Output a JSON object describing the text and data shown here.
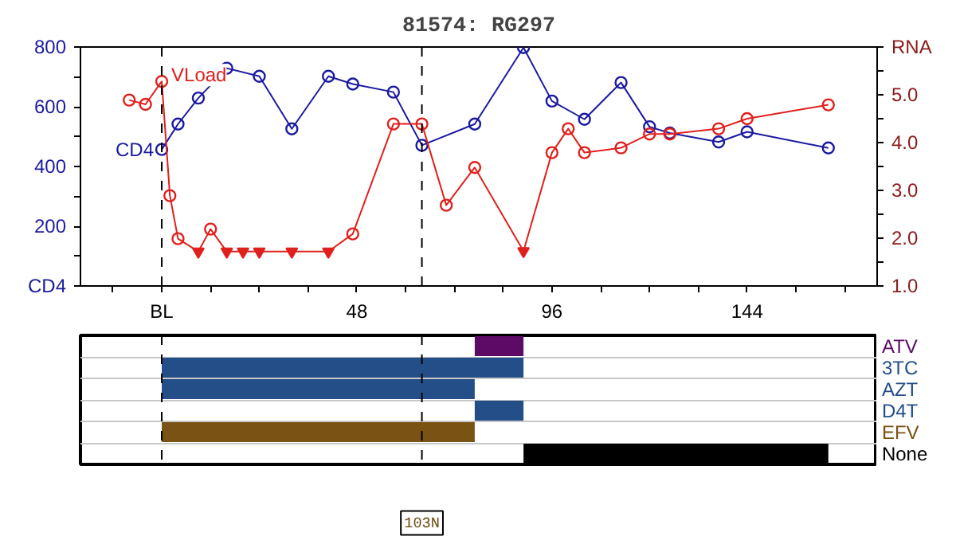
{
  "chart_data": [
    {
      "type": "line",
      "title": "81574: RG297",
      "xlim": [
        -20,
        176
      ],
      "ylim": [
        0,
        800
      ],
      "y2lim": [
        1.0,
        6.0
      ],
      "xticks": [
        {
          "value": -12,
          "label": null
        },
        {
          "value": 0,
          "label": "BL"
        },
        {
          "value": 12,
          "label": null
        },
        {
          "value": 24,
          "label": null
        },
        {
          "value": 36,
          "label": null
        },
        48,
        {
          "value": 60,
          "label": null
        },
        {
          "value": 72,
          "label": null
        },
        {
          "value": 84,
          "label": null
        },
        96,
        {
          "value": 108,
          "label": null
        },
        {
          "value": 120,
          "label": null
        },
        {
          "value": 132,
          "label": null
        },
        144,
        {
          "value": 156,
          "label": null
        },
        {
          "value": 168,
          "label": null
        }
      ],
      "yticks": [
        {
          "value": 0,
          "label": "CD4"
        },
        {
          "value": 100,
          "label": null
        },
        200,
        {
          "value": 300,
          "label": null
        },
        400,
        {
          "value": 500,
          "label": null
        },
        600,
        {
          "value": 700,
          "label": null
        },
        800
      ],
      "y2ticks": [
        {
          "value": 1.0,
          "label": "1.0"
        },
        {
          "value": 1.5,
          "label": null
        },
        {
          "value": 2.0,
          "label": "2.0"
        },
        {
          "value": 2.5,
          "label": null
        },
        {
          "value": 3.0,
          "label": "3.0"
        },
        {
          "value": 3.5,
          "label": null
        },
        {
          "value": 4.0,
          "label": "4.0"
        },
        {
          "value": 4.5,
          "label": null
        },
        {
          "value": 5.0,
          "label": "5.0"
        },
        {
          "value": 5.5,
          "label": null
        },
        {
          "value": 6.0,
          "label": "RNA"
        }
      ],
      "grid": false,
      "ref_lines": [
        {
          "axis": "x",
          "value": 0,
          "line_style": "dashed",
          "color": "#000000"
        },
        {
          "axis": "x",
          "value": 64,
          "line_style": "dashed",
          "color": "#000000"
        }
      ],
      "series": [
        {
          "name": "CD4",
          "type": "line",
          "marker": "circle",
          "color": "#1a1aa0",
          "x": [
            0,
            4,
            9,
            16,
            24,
            32,
            41,
            47,
            57,
            64,
            77,
            89,
            96,
            104,
            113,
            120,
            125,
            137,
            144,
            164
          ],
          "values": [
            457,
            542,
            629,
            729,
            702,
            526,
            702,
            676,
            649,
            471,
            542,
            798,
            619,
            558,
            681,
            533,
            512,
            482,
            516,
            462
          ]
        },
        {
          "name": "VLoad",
          "type": "line",
          "marker": "none",
          "axis": "y2",
          "color": "#e0201c",
          "x": [
            -8,
            -4,
            0,
            2,
            4,
            9,
            12,
            16,
            20,
            24,
            32,
            41,
            47,
            57,
            64,
            70,
            77,
            89,
            96,
            100,
            104,
            113,
            120,
            125,
            137,
            144,
            164
          ],
          "values": [
            4.89,
            4.8,
            5.28,
            2.89,
            1.99,
            1.72,
            2.19,
            1.72,
            1.72,
            1.72,
            1.72,
            1.72,
            2.09,
            4.39,
            4.39,
            2.69,
            3.48,
            1.73,
            3.79,
            4.29,
            3.79,
            3.89,
            4.18,
            4.18,
            4.29,
            4.5,
            4.79
          ]
        },
        {
          "type": "scatter",
          "marker": "circle",
          "axis": "y2",
          "color": "#e0201c",
          "x": [
            -8,
            -4,
            0,
            2,
            4,
            12,
            47,
            57,
            64,
            70,
            77,
            96,
            100,
            104,
            113,
            120,
            125,
            137,
            144,
            164
          ],
          "values": [
            4.89,
            4.8,
            5.28,
            2.89,
            1.99,
            2.19,
            2.09,
            4.39,
            4.39,
            2.69,
            3.48,
            3.79,
            4.29,
            3.79,
            3.89,
            4.18,
            4.18,
            4.29,
            4.5,
            4.79
          ]
        },
        {
          "type": "scatter",
          "marker": "triangle",
          "axis": "y2",
          "color": "#e0201c",
          "x": [
            9,
            16,
            20,
            24,
            32,
            41,
            89
          ],
          "values": [
            1.72,
            1.72,
            1.72,
            1.72,
            1.72,
            1.72,
            1.73
          ]
        }
      ]
    },
    {
      "type": "bar",
      "orientation": "horizontal",
      "xlim": [
        -20,
        176
      ],
      "tick_labels": "y",
      "grid": "y",
      "categories": [
        "ATV",
        "3TC",
        "AZT",
        "D4T",
        "EFV",
        "None"
      ],
      "values": [
        12,
        89,
        77,
        12,
        77,
        75
      ],
      "base": [
        77,
        0,
        0,
        77,
        0,
        89
      ],
      "colors": [
        "#5c0a64",
        "#234e87",
        "#234e87",
        "#234e87",
        "#7a5214",
        "#000000"
      ],
      "ref_lines": [
        {
          "axis": "x",
          "value": 0,
          "line_style": "dashed",
          "color": "#000000"
        },
        {
          "axis": "x",
          "value": 64,
          "line_style": "dashed",
          "color": "#000000"
        }
      ],
      "annotations": [
        "103N"
      ]
    }
  ]
}
